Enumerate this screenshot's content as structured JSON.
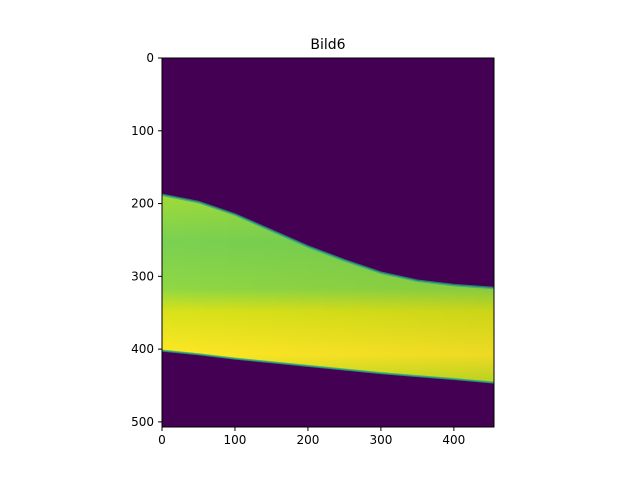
{
  "chart_data": {
    "type": "heatmap",
    "title": "Bild6",
    "colormap": "viridis",
    "background_color": "#440154",
    "image_width": 455,
    "image_height": 507,
    "xlim": [
      0,
      455
    ],
    "ylim": [
      507,
      0
    ],
    "y_inverted": true,
    "xticks": [
      {
        "value": 0,
        "label": "0"
      },
      {
        "value": 100,
        "label": "100"
      },
      {
        "value": 200,
        "label": "200"
      },
      {
        "value": 300,
        "label": "300"
      },
      {
        "value": 400,
        "label": "400"
      }
    ],
    "yticks": [
      {
        "value": 0,
        "label": "0"
      },
      {
        "value": 100,
        "label": "100"
      },
      {
        "value": 200,
        "label": "200"
      },
      {
        "value": 300,
        "label": "300"
      },
      {
        "value": 400,
        "label": "400"
      },
      {
        "value": 500,
        "label": "500"
      }
    ],
    "region": {
      "upper_boundary": [
        [
          0,
          188
        ],
        [
          50,
          198
        ],
        [
          100,
          215
        ],
        [
          150,
          237
        ],
        [
          200,
          259
        ],
        [
          250,
          278
        ],
        [
          300,
          295
        ],
        [
          350,
          306
        ],
        [
          400,
          312
        ],
        [
          455,
          316
        ]
      ],
      "lower_boundary": [
        [
          0,
          402
        ],
        [
          50,
          407
        ],
        [
          100,
          413
        ],
        [
          150,
          418
        ],
        [
          200,
          423
        ],
        [
          250,
          428
        ],
        [
          300,
          433
        ],
        [
          350,
          437
        ],
        [
          400,
          441
        ],
        [
          455,
          446
        ]
      ],
      "colors": {
        "upper_fill": "#7ad151",
        "lower_fill": "#fde725",
        "edge": "#22a884"
      }
    }
  }
}
